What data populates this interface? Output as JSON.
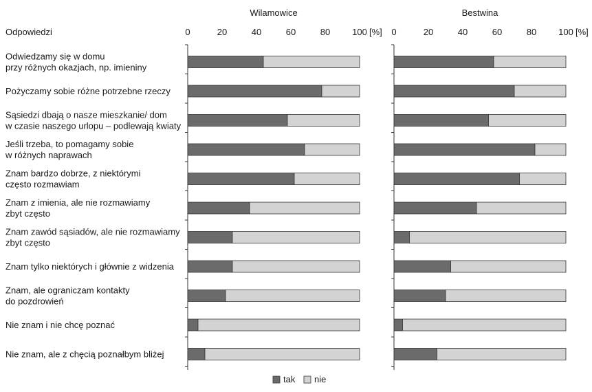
{
  "chart_data": {
    "type": "bar",
    "stacked": true,
    "orientation": "horizontal",
    "header_label": "Odpowiedzi",
    "categories": [
      [
        "Odwiedzamy się w domu",
        "przy różnych okazjach, np. imieniny"
      ],
      [
        "Pożyczamy sobie różne potrzebne rzeczy"
      ],
      [
        "Sąsiedzi dbają o nasze mieszkanie/ dom",
        "w czasie naszego urlopu – podlewają kwiaty"
      ],
      [
        "Jeśli trzeba, to pomagamy sobie",
        "w różnych naprawach"
      ],
      [
        "Znam bardzo dobrze, z niektórymi",
        "często rozmawiam"
      ],
      [
        "Znam z imienia, ale nie rozmawiamy",
        "zbyt często"
      ],
      [
        "Znam zawód sąsiadów, ale nie rozmawiamy",
        "zbyt często"
      ],
      [
        "Znam tylko niektórych i głównie z widzenia"
      ],
      [
        "Znam, ale ograniczam kontakty",
        "do pozdrowień"
      ],
      [
        "Nie znam i nie chcę poznać"
      ],
      [
        "Nie znam, ale z chęcią poznałbym bliżej"
      ]
    ],
    "xlim": [
      0,
      100
    ],
    "ticks": [
      "0",
      "20",
      "40",
      "60",
      "80",
      "100"
    ],
    "unit_label": "[%]",
    "panels": [
      {
        "title": "Wilamowice",
        "series": [
          {
            "name": "tak",
            "values": [
              44,
              78,
              58,
              68,
              62,
              36,
              26,
              26,
              22,
              6,
              10
            ]
          },
          {
            "name": "nie",
            "values": [
              56,
              22,
              42,
              32,
              38,
              64,
              74,
              74,
              78,
              94,
              90
            ]
          }
        ]
      },
      {
        "title": "Bestwina",
        "series": [
          {
            "name": "tak",
            "values": [
              58,
              70,
              55,
              82,
              73,
              48,
              9,
              33,
              30,
              5,
              25
            ]
          },
          {
            "name": "nie",
            "values": [
              42,
              30,
              45,
              18,
              27,
              52,
              91,
              67,
              70,
              95,
              75
            ]
          }
        ]
      }
    ],
    "colors": {
      "tak": "#6b6b6b",
      "nie": "#d3d3d3",
      "outline": "#333333"
    },
    "legend": [
      {
        "name": "tak",
        "color": "#6b6b6b"
      },
      {
        "name": "nie",
        "color": "#d3d3d3"
      }
    ],
    "legend_position": "bottom-center",
    "grid": false
  }
}
